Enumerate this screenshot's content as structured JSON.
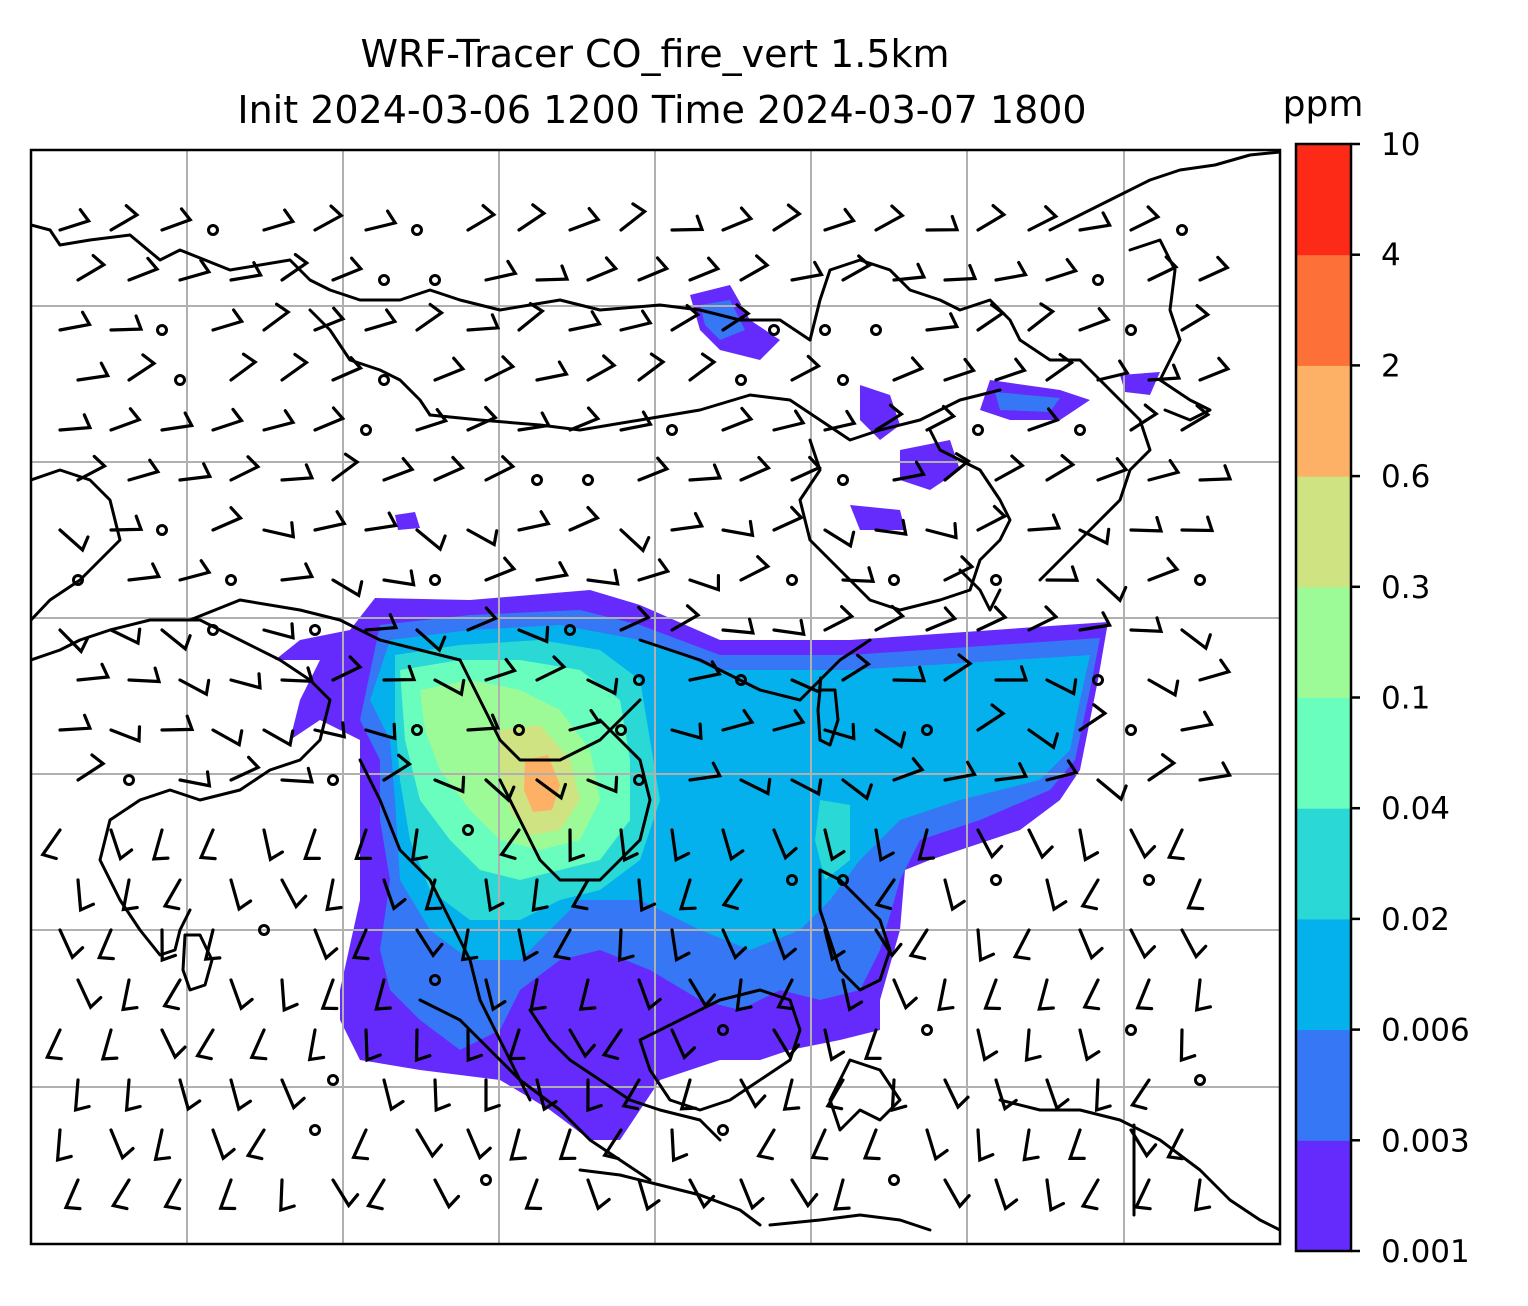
{
  "title": {
    "line1": "WRF-Tracer CO_fire_vert 1.5km",
    "line2": "Init 2024-03-06 1200 Time 2024-03-07 1800"
  },
  "colorbar": {
    "unit": "ppm",
    "levels": [
      "0.001",
      "0.003",
      "0.006",
      "0.02",
      "0.04",
      "0.1",
      "0.3",
      "0.6",
      "2",
      "4",
      "10"
    ],
    "colors": [
      "#652bfd",
      "#3577f4",
      "#05b1ec",
      "#2ad9d5",
      "#69fdbe",
      "#9dfb97",
      "#cfe383",
      "#fdb166",
      "#fd7038",
      "#fd2a17"
    ]
  },
  "map": {
    "gridlines": true,
    "overlays": [
      "coastlines",
      "wind-barbs",
      "tracer-concentration"
    ],
    "background_color": "#ffffff",
    "coast_color": "#000000"
  }
}
